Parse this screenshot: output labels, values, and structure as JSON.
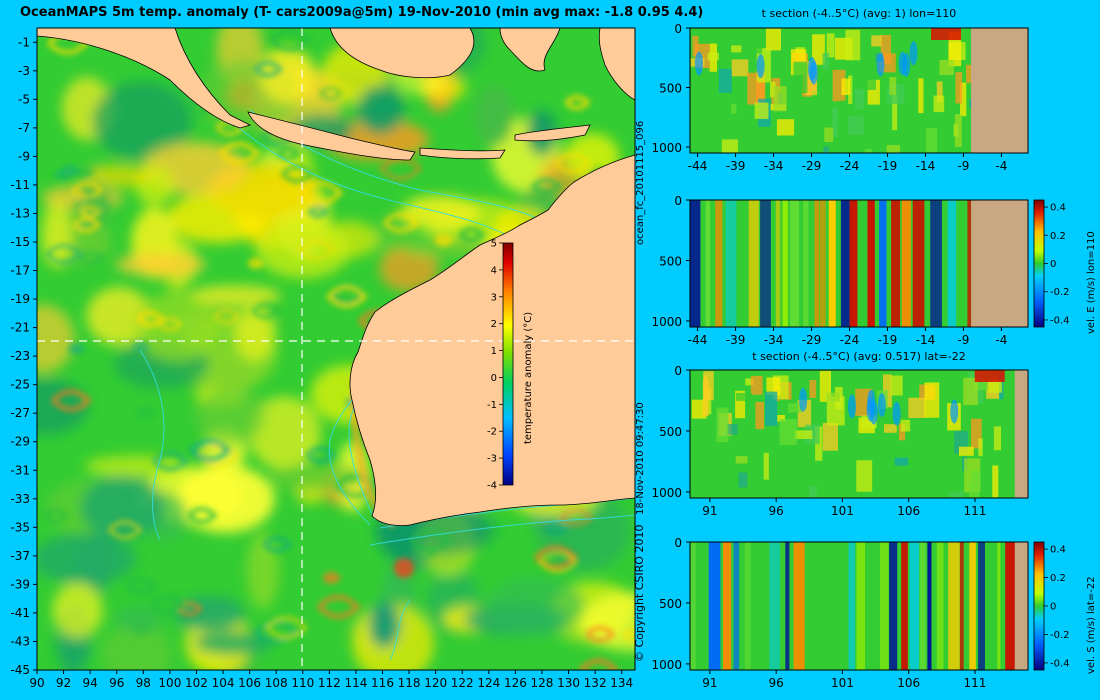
{
  "title": "OceanMAPS 5m temp. anomaly (T- cars2009a@5m) 19-Nov-2010 (min avg max: -1.8 0.95 4.4)",
  "side_text": {
    "run_id": "ocean_fc_20101115_096",
    "timestamp": "18-Nov-2010 09:47:30",
    "copyright": "© Copyright CSIRO 2010"
  },
  "map": {
    "lat_ticks": [
      "-1",
      "-3",
      "-5",
      "-7",
      "-9",
      "-11",
      "-13",
      "-15",
      "-17",
      "-19",
      "-21",
      "-23",
      "-25",
      "-27",
      "-29",
      "-31",
      "-33",
      "-35",
      "-37",
      "-39",
      "-41",
      "-43",
      "-45"
    ],
    "lon_ticks": [
      "90",
      "92",
      "94",
      "96",
      "98",
      "100",
      "102",
      "104",
      "106",
      "108",
      "110",
      "112",
      "114",
      "116",
      "118",
      "120",
      "122",
      "124",
      "126",
      "128",
      "130",
      "132",
      "134"
    ],
    "lat_range": [
      -45,
      0
    ],
    "lon_range": [
      90,
      135
    ],
    "crosshair": {
      "lon": 110,
      "lat": -22
    },
    "colorbar": {
      "label": "temperature anomaly (°C)",
      "ticks": [
        "5",
        "4",
        "3",
        "2",
        "1",
        "0",
        "-1",
        "-2",
        "-3",
        "-4"
      ],
      "range": [
        -4,
        5
      ]
    }
  },
  "panels": [
    {
      "title": "t section (-4..5°C) (avg: 1) lon=110",
      "x_ticks": [
        "-44",
        "-39",
        "-34",
        "-29",
        "-24",
        "-19",
        "-14",
        "-9",
        "-4"
      ],
      "y_ticks": [
        "0",
        "500",
        "1000"
      ],
      "land_from": -8
    },
    {
      "title": "",
      "x_ticks": [
        "-44",
        "-39",
        "-34",
        "-29",
        "-24",
        "-19",
        "-14",
        "-9",
        "-4"
      ],
      "y_ticks": [
        "0",
        "500",
        "1000"
      ],
      "land_from": -8,
      "colorbar": {
        "label": "vel. E (m/s) lon=110",
        "ticks": [
          "0.4",
          "0.2",
          "0",
          "-0.2",
          "-0.4"
        ]
      }
    },
    {
      "title": "t section (-4..5°C) (avg: 0.517) lat=-22",
      "x_ticks": [
        "91",
        "96",
        "101",
        "106",
        "111"
      ],
      "y_ticks": [
        "0",
        "500",
        "1000"
      ],
      "land_from": 114
    },
    {
      "title": "",
      "x_ticks": [
        "91",
        "96",
        "101",
        "106",
        "111"
      ],
      "y_ticks": [
        "0",
        "500",
        "1000"
      ],
      "land_from": 114,
      "colorbar": {
        "label": "vel. S (m/s) lat=-22",
        "ticks": [
          "0.4",
          "0.2",
          "0",
          "-0.2",
          "-0.4"
        ]
      }
    }
  ],
  "colors": {
    "background": "#00ccff",
    "land": "#ffcc99",
    "section_land": "#c8a882",
    "ocean_base": "#33cc33",
    "contour": "#33dddd"
  }
}
